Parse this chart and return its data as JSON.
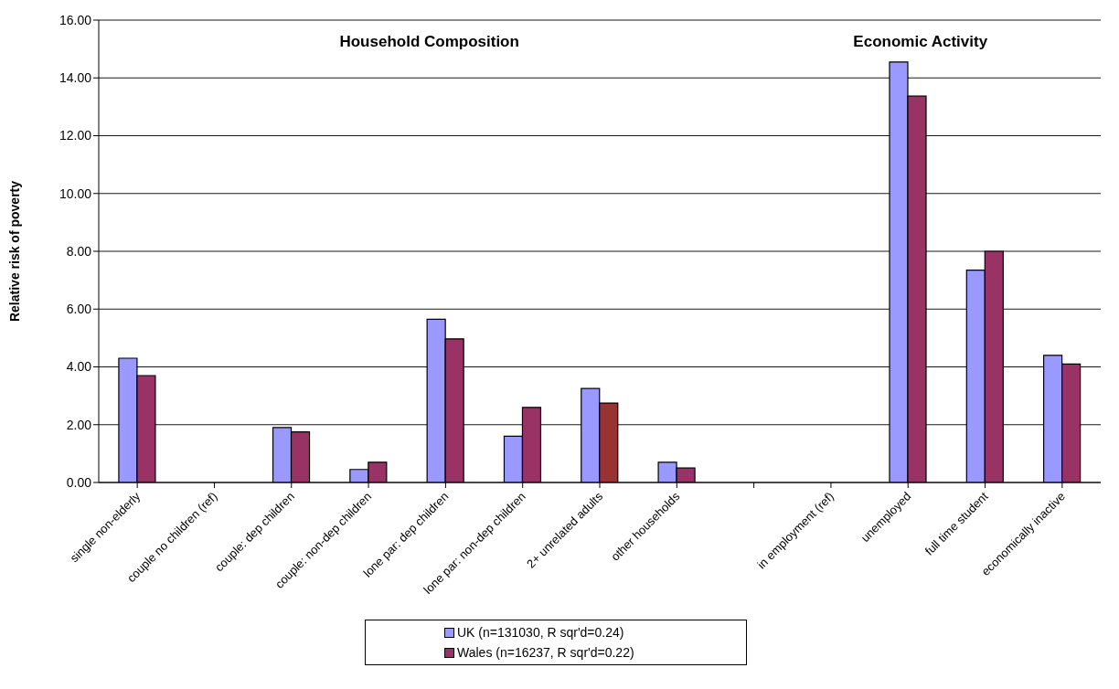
{
  "chart_data": {
    "type": "bar",
    "ylabel": "Relative risk of poverty",
    "categories": [
      "single non-elderly",
      "couple no children (ref)",
      "couple: dep children",
      "couple: non-dep children",
      "lone par: dep children",
      "lone par: non-dep children",
      "2+ unrelated adults",
      "other households",
      null,
      "in employment (ref)",
      "unemployed",
      "full time student",
      "economically inactive"
    ],
    "series": [
      {
        "name": "UK (n=131030, R sqr'd=0.24)",
        "color": "#9999ff",
        "values": [
          4.3,
          null,
          1.9,
          0.45,
          5.65,
          1.6,
          3.25,
          0.7,
          null,
          null,
          14.55,
          7.35,
          4.4
        ]
      },
      {
        "name": "Wales  (n=16237, R sqr'd=0.22)",
        "color": "#993366",
        "colors": [
          "#993366",
          "#993366",
          "#993366",
          "#993366",
          "#993366",
          "#993366",
          "#993333",
          "#993366",
          "#993366",
          "#993366",
          "#993366",
          "#993366",
          "#993366"
        ],
        "values": [
          3.7,
          null,
          1.75,
          0.7,
          4.97,
          2.6,
          2.75,
          0.5,
          null,
          null,
          13.37,
          8.0,
          4.1
        ]
      }
    ],
    "ylim": [
      0,
      16
    ],
    "yticks": [
      {
        "value": 0,
        "label": "0.00"
      },
      {
        "value": 2,
        "label": "2.00"
      },
      {
        "value": 4,
        "label": "4.00"
      },
      {
        "value": 6,
        "label": "6.00"
      },
      {
        "value": 8,
        "label": "8.00"
      },
      {
        "value": 10,
        "label": "10.00"
      },
      {
        "value": 12,
        "label": "12.00"
      },
      {
        "value": 14,
        "label": "14.00"
      },
      {
        "value": 16,
        "label": "16.00"
      }
    ],
    "annotations": [
      "Household Composition",
      "Economic Activity"
    ],
    "grid": "y",
    "legend": "bottom"
  }
}
